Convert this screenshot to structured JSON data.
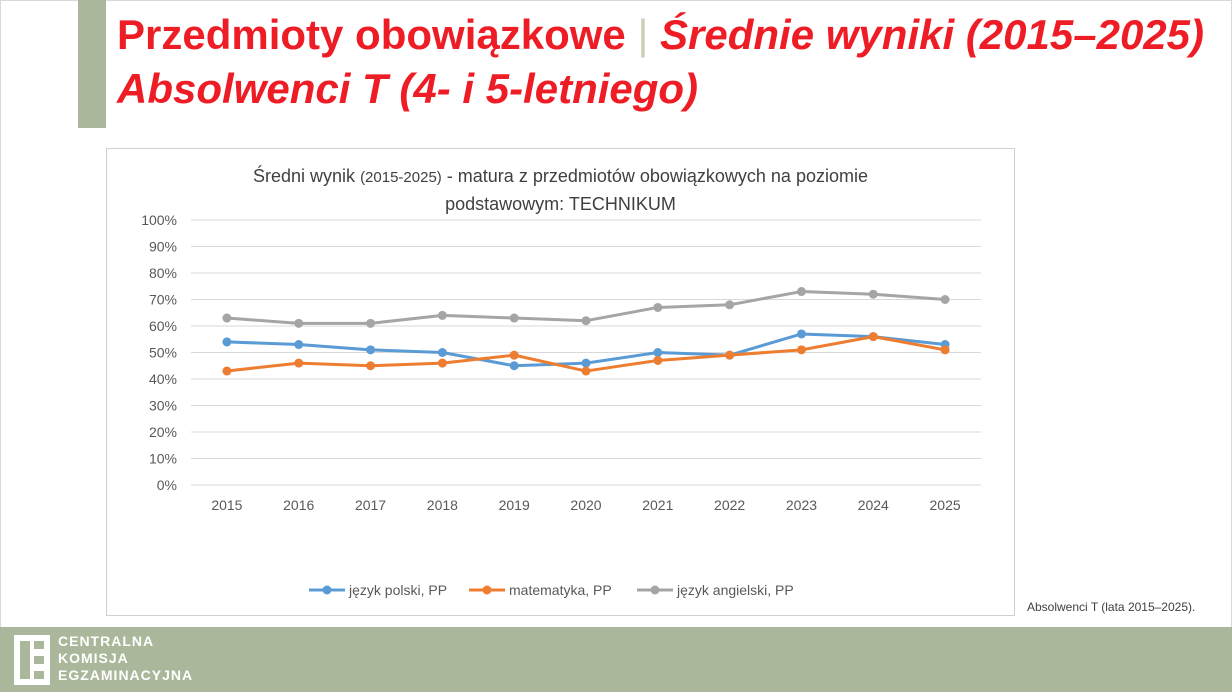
{
  "header": {
    "title_part1": "Przedmioty obowiązkowe",
    "separator": "|",
    "title_part2": "Średnie wyniki (2015–2025)",
    "title_line2": "Absolwenci T (4- i 5-letniego)"
  },
  "footnote": "Absolwenci T (lata 2015–2025).",
  "logo": {
    "line1": "CENTRALNA",
    "line2": "KOMISJA",
    "line3": "EGZAMINACYJNA",
    "mark_text": "CKE"
  },
  "colors": {
    "title": "#ee1c25",
    "accent_bar": "#aab79a",
    "series_polski": "#5b9bd5",
    "series_matematyka": "#ed7d31",
    "series_angielski": "#a5a5a5"
  },
  "chart_data": {
    "type": "line",
    "title_line1_a": "Średni wynik ",
    "title_line1_small": "(2015-2025)",
    "title_line1_b": " - matura z przedmiotów obowiązkowych na poziomie",
    "title_line2": "podstawowym: TECHNIKUM",
    "x": [
      "2015",
      "2016",
      "2017",
      "2018",
      "2019",
      "2020",
      "2021",
      "2022",
      "2023",
      "2024",
      "2025"
    ],
    "ylim": [
      0,
      100
    ],
    "yticks": [
      "0%",
      "10%",
      "20%",
      "30%",
      "40%",
      "50%",
      "60%",
      "70%",
      "80%",
      "90%",
      "100%"
    ],
    "grid": true,
    "legend_position": "bottom",
    "series": [
      {
        "name": "język polski, PP",
        "color": "#5b9bd5",
        "values": [
          54,
          53,
          51,
          50,
          45,
          46,
          50,
          49,
          57,
          56,
          53
        ]
      },
      {
        "name": "matematyka, PP",
        "color": "#ed7d31",
        "values": [
          43,
          46,
          45,
          46,
          49,
          43,
          47,
          49,
          51,
          56,
          51
        ]
      },
      {
        "name": "język angielski, PP",
        "color": "#a5a5a5",
        "values": [
          63,
          61,
          61,
          64,
          63,
          62,
          67,
          68,
          73,
          72,
          70
        ]
      }
    ]
  }
}
